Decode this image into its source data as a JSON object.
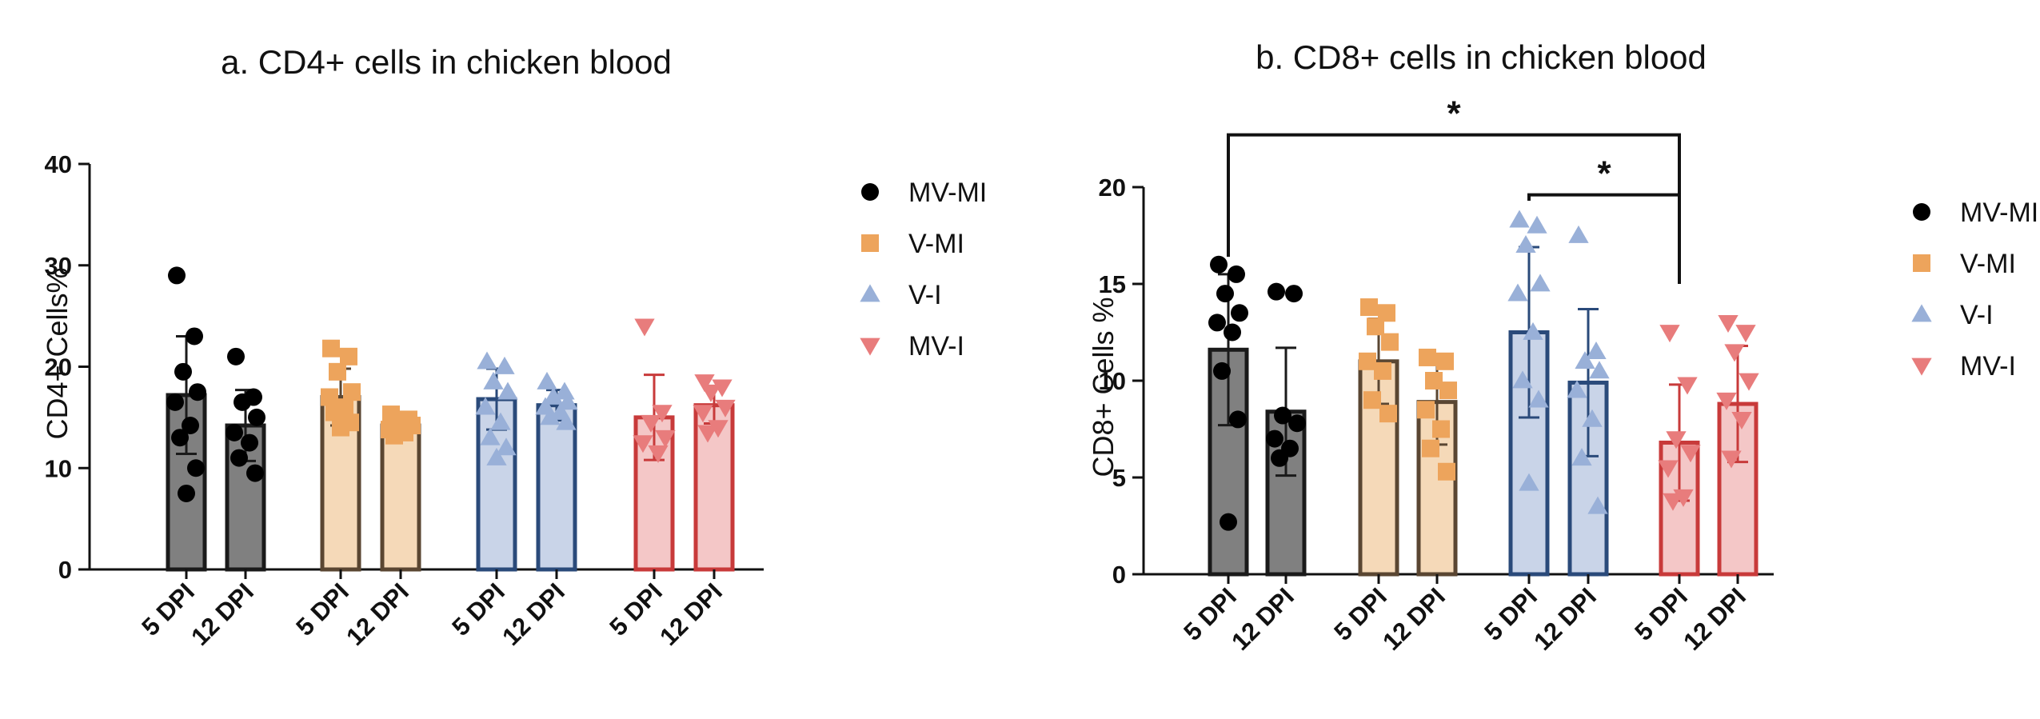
{
  "colors": {
    "MV-MI": {
      "fill": "#808080",
      "stroke": "#1a1a1a",
      "point": "#000000"
    },
    "V-MI": {
      "fill": "#f5d9b8",
      "stroke": "#5a4632",
      "point": "#eda45c"
    },
    "V-I": {
      "fill": "#c9d4e8",
      "stroke": "#2a4a7a",
      "point": "#99b0d8"
    },
    "MV-I": {
      "fill": "#f4c7c7",
      "stroke": "#c83a3a",
      "point": "#e87c7c"
    }
  },
  "chart_data": [
    {
      "id": "cd4",
      "type": "bar",
      "title": "a. CD4+ cells in chicken blood",
      "ylabel": "CD4+ Cells%",
      "xlabel": "",
      "ylim": [
        0,
        40
      ],
      "yticks": [
        0,
        10,
        20,
        30,
        40
      ],
      "grid": false,
      "legend_position": "right",
      "legend": [
        {
          "name": "MV-MI",
          "marker": "circle"
        },
        {
          "name": "V-MI",
          "marker": "square"
        },
        {
          "name": "V-I",
          "marker": "triangle-up"
        },
        {
          "name": "MV-I",
          "marker": "triangle-down"
        }
      ],
      "groups": [
        {
          "group": "MV-MI",
          "marker": "circle",
          "bars": [
            {
              "label": "5 DPI",
              "mean": 17.2,
              "sd": 5.8,
              "points": [
                29,
                23,
                19.5,
                17.5,
                16.5,
                14.2,
                13,
                10,
                7.5
              ]
            },
            {
              "label": "12 DPI",
              "mean": 14.2,
              "sd": 3.5,
              "points": [
                21,
                17,
                16.5,
                15,
                13.5,
                12.5,
                11,
                9.5
              ]
            }
          ]
        },
        {
          "group": "V-MI",
          "marker": "square",
          "bars": [
            {
              "label": "5 DPI",
              "mean": 17,
              "sd": 2.8,
              "points": [
                21.8,
                21,
                19.5,
                17.5,
                17,
                16,
                15.5,
                14.5,
                14
              ]
            },
            {
              "label": "12 DPI",
              "mean": 14.2,
              "sd": 1.1,
              "points": [
                15.3,
                14.8,
                14.5,
                14.2,
                13.8,
                13.5,
                13.2
              ]
            }
          ]
        },
        {
          "group": "V-I",
          "marker": "triangle-up",
          "bars": [
            {
              "label": "5 DPI",
              "mean": 16.8,
              "sd": 3,
              "points": [
                20.5,
                20,
                18.5,
                17.5,
                16,
                14.5,
                13,
                12,
                11
              ]
            },
            {
              "label": "12 DPI",
              "mean": 16.2,
              "sd": 1.5,
              "points": [
                18.5,
                17.5,
                17,
                16.5,
                16,
                15.5,
                15,
                14.5
              ]
            }
          ]
        },
        {
          "group": "MV-I",
          "marker": "triangle-down",
          "bars": [
            {
              "label": "5 DPI",
              "mean": 15,
              "sd": 4.2,
              "points": [
                24,
                15.5,
                14.5,
                13,
                12.5,
                11.5
              ]
            },
            {
              "label": "12 DPI",
              "mean": 16.2,
              "sd": 1.8,
              "points": [
                18.5,
                18,
                17.5,
                16,
                15.5,
                14,
                13.5
              ]
            }
          ]
        }
      ],
      "significance": []
    },
    {
      "id": "cd8",
      "type": "bar",
      "title": "b. CD8+ cells in chicken blood",
      "ylabel": "CD8+ Cells %",
      "xlabel": "",
      "ylim": [
        0,
        20
      ],
      "yticks": [
        0,
        5,
        10,
        15,
        20
      ],
      "grid": false,
      "legend_position": "right",
      "legend": [
        {
          "name": "MV-MI",
          "marker": "circle"
        },
        {
          "name": "V-MI",
          "marker": "square"
        },
        {
          "name": "V-I",
          "marker": "triangle-up"
        },
        {
          "name": "MV-I",
          "marker": "triangle-down"
        }
      ],
      "groups": [
        {
          "group": "MV-MI",
          "marker": "circle",
          "bars": [
            {
              "label": "5 DPI",
              "mean": 11.6,
              "sd": 3.9,
              "points": [
                16,
                15.5,
                14.5,
                13.5,
                13,
                12.5,
                10.5,
                8,
                2.7
              ]
            },
            {
              "label": "12 DPI",
              "mean": 8.4,
              "sd": 3.3,
              "points": [
                14.6,
                14.5,
                8.2,
                7.8,
                7,
                6.5,
                6
              ]
            }
          ]
        },
        {
          "group": "V-MI",
          "marker": "square",
          "bars": [
            {
              "label": "5 DPI",
              "mean": 11,
              "sd": 2.2,
              "points": [
                13.8,
                13.5,
                12.8,
                12,
                11,
                10.5,
                9,
                8.3
              ]
            },
            {
              "label": "12 DPI",
              "mean": 8.9,
              "sd": 2.2,
              "points": [
                11.2,
                11,
                10,
                9.5,
                8.5,
                7.5,
                6.5,
                5.3
              ]
            }
          ]
        },
        {
          "group": "V-I",
          "marker": "triangle-up",
          "bars": [
            {
              "label": "5 DPI",
              "mean": 12.5,
              "sd": 4.4,
              "points": [
                18.3,
                18,
                17,
                15,
                14.5,
                12.5,
                10,
                9,
                4.7
              ]
            },
            {
              "label": "12 DPI",
              "mean": 9.9,
              "sd": 3.8,
              "points": [
                17.5,
                11.5,
                11,
                10.5,
                9.5,
                8,
                6,
                3.5
              ]
            }
          ]
        },
        {
          "group": "MV-I",
          "marker": "triangle-down",
          "bars": [
            {
              "label": "5 DPI",
              "mean": 6.8,
              "sd": 3,
              "points": [
                12.5,
                9.8,
                7,
                6.3,
                5.5,
                4,
                3.8
              ]
            },
            {
              "label": "12 DPI",
              "mean": 8.8,
              "sd": 3,
              "points": [
                13,
                12.5,
                11.5,
                10,
                9,
                8,
                6
              ]
            }
          ]
        }
      ],
      "significance": [
        {
          "from": "MV-MI 5 DPI",
          "to": "MV-I 5 DPI",
          "level": 22.7,
          "label": "*"
        },
        {
          "from": "V-I 5 DPI",
          "to": "MV-I 5 DPI",
          "level": 19.6,
          "label": "*"
        }
      ]
    }
  ]
}
